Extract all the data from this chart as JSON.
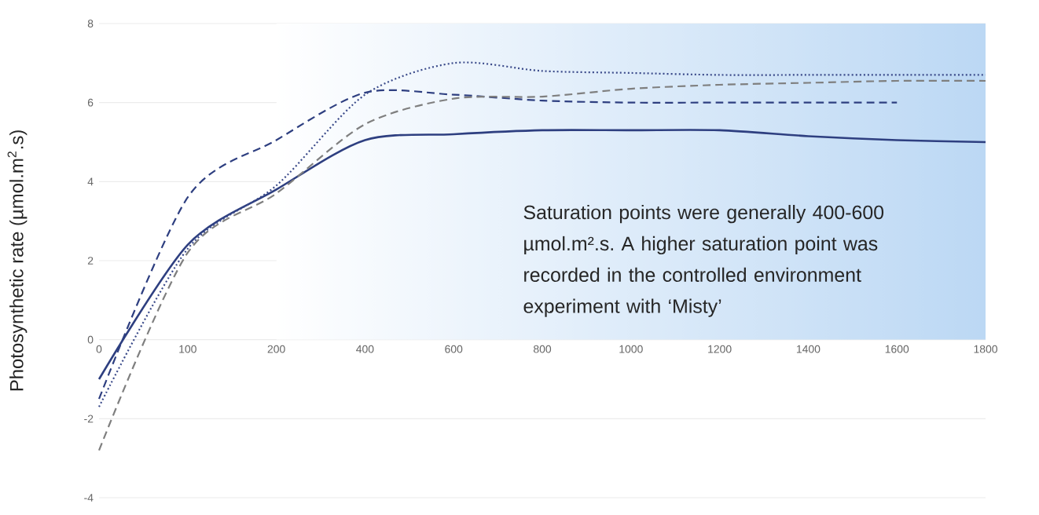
{
  "chart_data": {
    "type": "line",
    "ylabel": "Photosynthetic rate (µmol.m$^{2}$.s)",
    "categories": [
      "0",
      "100",
      "200",
      "400",
      "600",
      "800",
      "1000",
      "1200",
      "1400",
      "1600",
      "1800"
    ],
    "series": [
      {
        "color": "#2e3f80",
        "line_style": "solid",
        "values": [
          -1.0,
          2.4,
          3.8,
          5.05,
          5.2,
          5.3,
          5.3,
          5.3,
          5.15,
          5.05,
          5.0
        ]
      },
      {
        "color": "#2e3f80",
        "line_style": "dashed",
        "values": [
          -1.5,
          3.6,
          5.05,
          6.25,
          6.2,
          6.05,
          6.0,
          6.0,
          6.0,
          6.0,
          null
        ]
      },
      {
        "color": "#3a4a8a",
        "line_style": "dotted",
        "values": [
          -1.7,
          2.3,
          3.9,
          6.2,
          7.0,
          6.8,
          6.75,
          6.7,
          6.7,
          6.7,
          6.7
        ]
      },
      {
        "color": "#7f7f7f",
        "line_style": "dashed",
        "values": [
          -2.8,
          2.2,
          3.7,
          5.45,
          6.1,
          6.15,
          6.35,
          6.45,
          6.5,
          6.55,
          6.55
        ]
      }
    ],
    "ylim": [
      -4,
      8
    ],
    "yticks": [
      -4,
      -2,
      0,
      2,
      4,
      6,
      8
    ],
    "grid": "y",
    "marker": "none",
    "bands": [
      {
        "axis": "x",
        "from": "200",
        "to": "1800",
        "color": "#bcd8f4"
      }
    ],
    "annotations": [
      "Saturation points were generally 400-600 µmol.m².s. A higher saturation point was recorded in the controlled environment experiment with ‘Misty’"
    ]
  }
}
